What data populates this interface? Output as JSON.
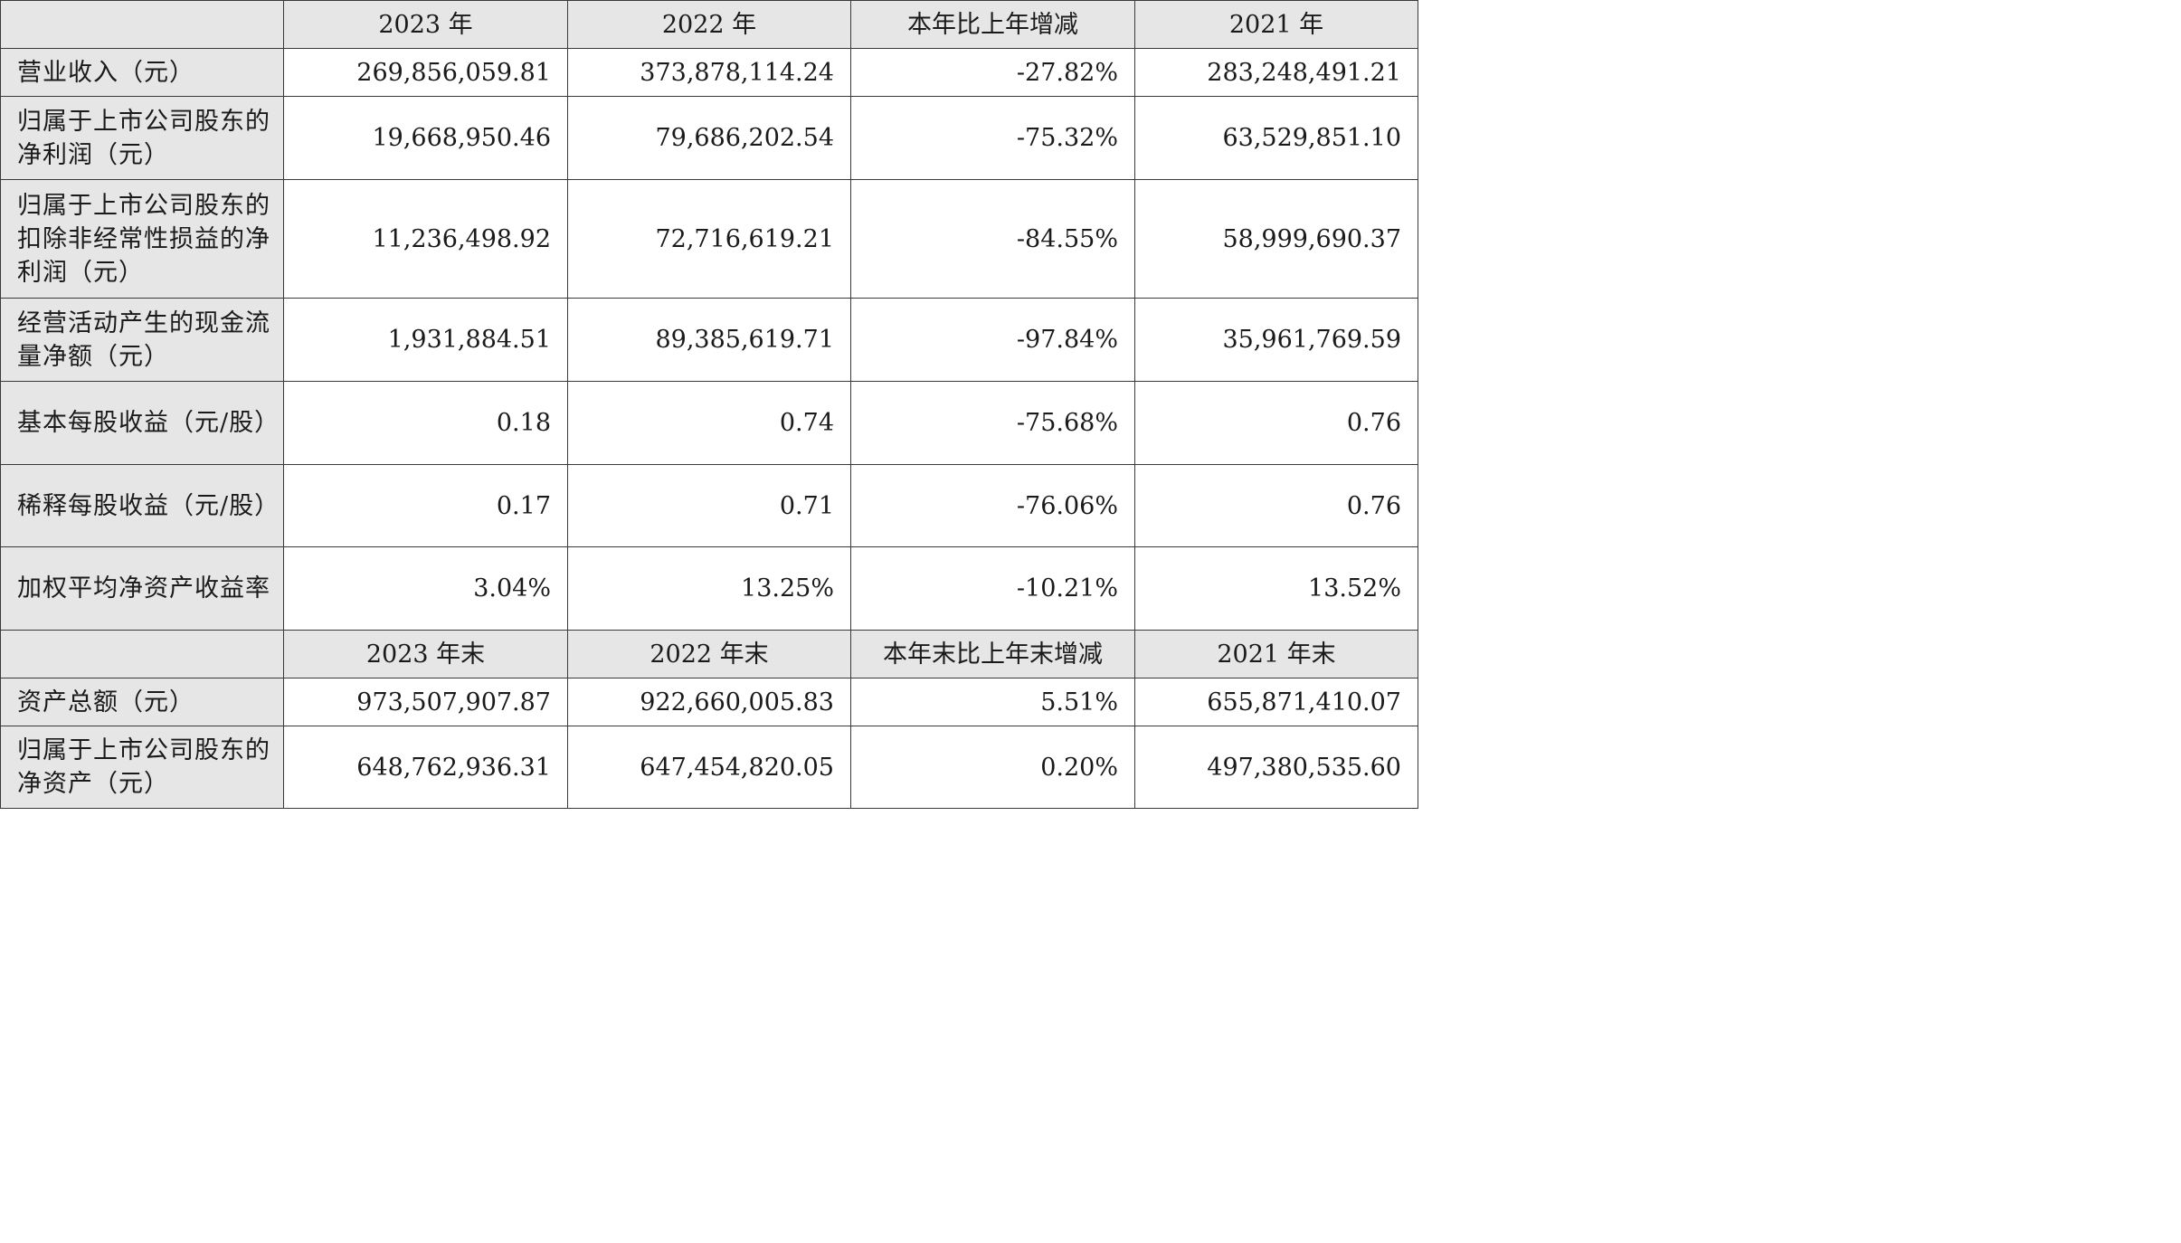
{
  "header1": [
    "2023 年",
    "2022 年",
    "本年比上年增减",
    "2021 年"
  ],
  "rows1": [
    {
      "label": "营业收入（元）",
      "values": [
        "269,856,059.81",
        "373,878,114.24",
        "-27.82%",
        "283,248,491.21"
      ]
    },
    {
      "label": "归属于上市公司股东的净利润（元）",
      "values": [
        "19,668,950.46",
        "79,686,202.54",
        "-75.32%",
        "63,529,851.10"
      ]
    },
    {
      "label": "归属于上市公司股东的扣除非经常性损益的净利润（元）",
      "values": [
        "11,236,498.92",
        "72,716,619.21",
        "-84.55%",
        "58,999,690.37"
      ]
    },
    {
      "label": "经营活动产生的现金流量净额（元）",
      "values": [
        "1,931,884.51",
        "89,385,619.71",
        "-97.84%",
        "35,961,769.59"
      ]
    },
    {
      "label": "基本每股收益（元/股）",
      "values": [
        "0.18",
        "0.74",
        "-75.68%",
        "0.76"
      ]
    },
    {
      "label": "稀释每股收益（元/股）",
      "values": [
        "0.17",
        "0.71",
        "-76.06%",
        "0.76"
      ]
    },
    {
      "label": "加权平均净资产收益率",
      "values": [
        "3.04%",
        "13.25%",
        "-10.21%",
        "13.52%"
      ]
    }
  ],
  "header2": [
    "2023 年末",
    "2022 年末",
    "本年末比上年末增减",
    "2021 年末"
  ],
  "rows2": [
    {
      "label": "资产总额（元）",
      "values": [
        "973,507,907.87",
        "922,660,005.83",
        "5.51%",
        "655,871,410.07"
      ]
    },
    {
      "label": "归属于上市公司股东的净资产（元）",
      "values": [
        "648,762,936.31",
        "647,454,820.05",
        "0.20%",
        "497,380,535.60"
      ]
    }
  ]
}
